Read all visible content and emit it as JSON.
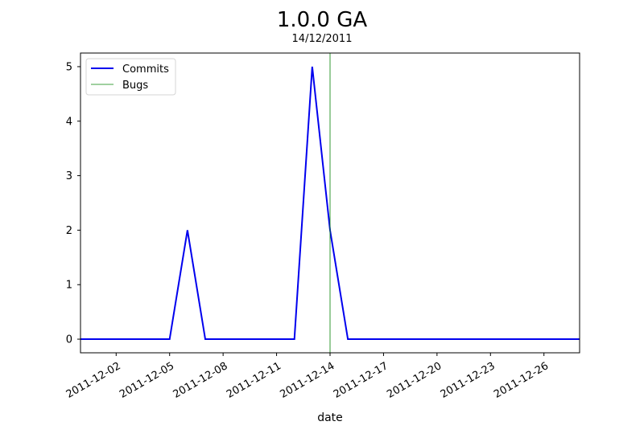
{
  "chart_data": {
    "type": "line",
    "title": "1.0.0 GA",
    "subtitle": "14/12/2011",
    "xlabel": "date",
    "ylabel": "",
    "xlim": [
      "2011-11-30",
      "2011-12-28"
    ],
    "ylim": [
      -0.25,
      5.25
    ],
    "grid": false,
    "legend_position": "top-left",
    "x_ticks": [
      "2011-12-02",
      "2011-12-05",
      "2011-12-08",
      "2011-12-11",
      "2011-12-14",
      "2011-12-17",
      "2011-12-20",
      "2011-12-23",
      "2011-12-26"
    ],
    "y_ticks": [
      "0",
      "1",
      "2",
      "3",
      "4",
      "5"
    ],
    "series": [
      {
        "name": "Commits",
        "color": "#0000ee",
        "x": [
          "2011-11-30",
          "2011-12-05",
          "2011-12-06",
          "2011-12-07",
          "2011-12-12",
          "2011-12-13",
          "2011-12-14",
          "2011-12-15",
          "2011-12-28"
        ],
        "values": [
          0,
          0,
          2,
          0,
          0,
          5,
          2,
          0,
          0
        ]
      }
    ],
    "vlines": [
      {
        "name": "Bugs",
        "color": "#008000",
        "x": "2011-12-14"
      }
    ]
  }
}
